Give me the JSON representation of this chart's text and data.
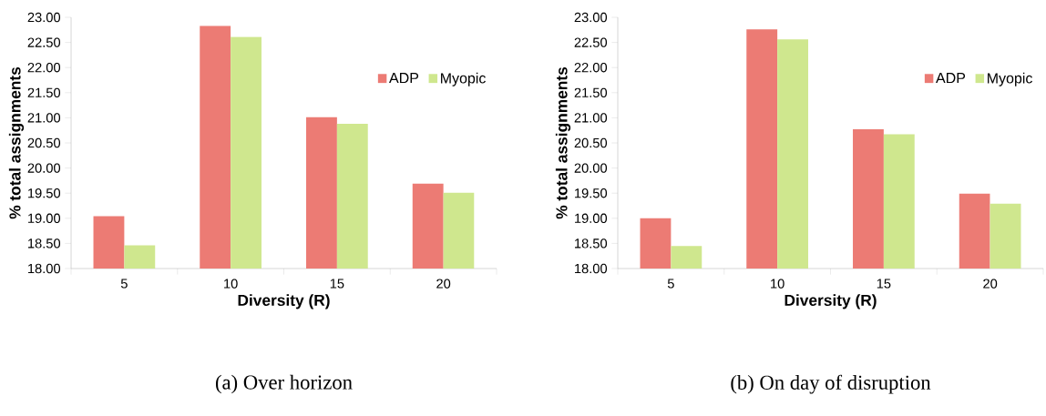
{
  "chart_data": [
    {
      "type": "bar",
      "title": "(a) Over horizon",
      "xlabel": "Diversity (R)",
      "ylabel": "% total assignments",
      "categories": [
        "5",
        "10",
        "15",
        "20"
      ],
      "series": [
        {
          "name": "ADP",
          "color": "#ec7b74",
          "values": [
            19.04,
            22.83,
            21.01,
            19.69
          ]
        },
        {
          "name": "Myopic",
          "color": "#cfe78e",
          "values": [
            18.46,
            22.61,
            20.88,
            19.51
          ]
        }
      ],
      "ylim": [
        18,
        23
      ],
      "yticks": [
        {
          "value": 18,
          "label": "18.00"
        },
        {
          "value": 18.5,
          "label": "18.50"
        },
        {
          "value": 19,
          "label": "19.00"
        },
        {
          "value": 19.5,
          "label": "19.50"
        },
        {
          "value": 20,
          "label": "20.00"
        },
        {
          "value": 20.5,
          "label": "20.50"
        },
        {
          "value": 21,
          "label": "21.00"
        },
        {
          "value": 21.5,
          "label": "21.50"
        },
        {
          "value": 22,
          "label": "22.00"
        },
        {
          "value": 22.5,
          "label": "22.50"
        },
        {
          "value": 23,
          "label": "23.00"
        }
      ],
      "grid": false,
      "legend": "top right"
    },
    {
      "type": "bar",
      "title": "(b) On day of disruption",
      "xlabel": "Diversity (R)",
      "ylabel": "% total assignments",
      "categories": [
        "5",
        "10",
        "15",
        "20"
      ],
      "series": [
        {
          "name": "ADP",
          "color": "#ec7b74",
          "values": [
            19.0,
            22.76,
            20.77,
            19.49
          ]
        },
        {
          "name": "Myopic",
          "color": "#cfe78e",
          "values": [
            18.45,
            22.56,
            20.67,
            19.29
          ]
        }
      ],
      "ylim": [
        18,
        23
      ],
      "yticks": [
        {
          "value": 18,
          "label": "18.00"
        },
        {
          "value": 18.5,
          "label": "18.50"
        },
        {
          "value": 19,
          "label": "19.00"
        },
        {
          "value": 19.5,
          "label": "19.50"
        },
        {
          "value": 20,
          "label": "20.00"
        },
        {
          "value": 20.5,
          "label": "20.50"
        },
        {
          "value": 21,
          "label": "21.00"
        },
        {
          "value": 21.5,
          "label": "21.50"
        },
        {
          "value": 22,
          "label": "22.00"
        },
        {
          "value": 22.5,
          "label": "22.50"
        },
        {
          "value": 23,
          "label": "23.00"
        }
      ],
      "grid": false,
      "legend": "top right"
    }
  ]
}
